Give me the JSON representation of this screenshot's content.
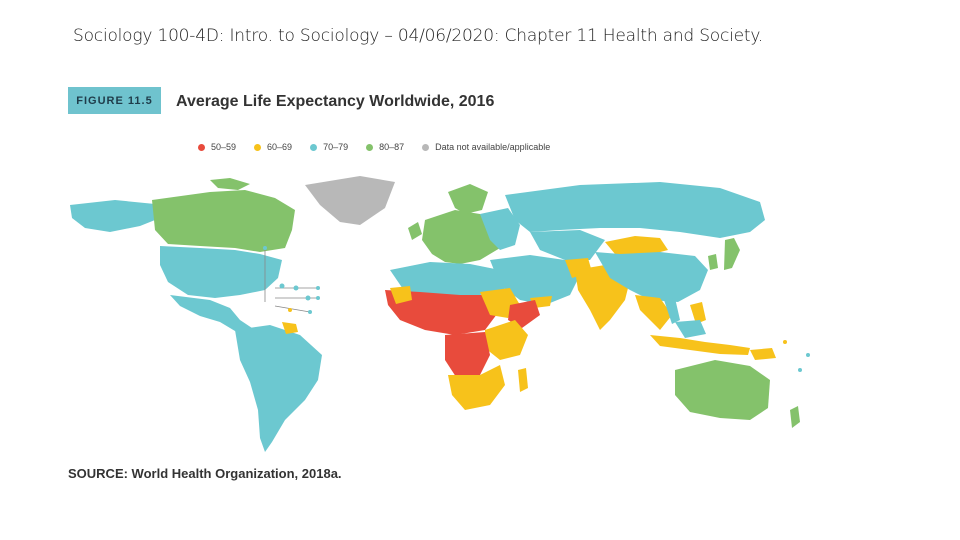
{
  "slide": {
    "title": "Sociology 100-4D: Intro. to Sociology – 04/06/2020: Chapter 11 Health and Society."
  },
  "figure": {
    "tag": "FIGURE 11.5",
    "title": "Average Life Expectancy Worldwide, 2016",
    "source": "SOURCE: World Health Organization, 2018a."
  },
  "legend": [
    {
      "label": "50–59",
      "color": "#e84b3c"
    },
    {
      "label": "60–69",
      "color": "#f7c21b"
    },
    {
      "label": "70–79",
      "color": "#6cc8d0"
    },
    {
      "label": "80–87",
      "color": "#84c26b"
    },
    {
      "label": "Data not available/applicable",
      "color": "#b8b8b8"
    }
  ]
}
